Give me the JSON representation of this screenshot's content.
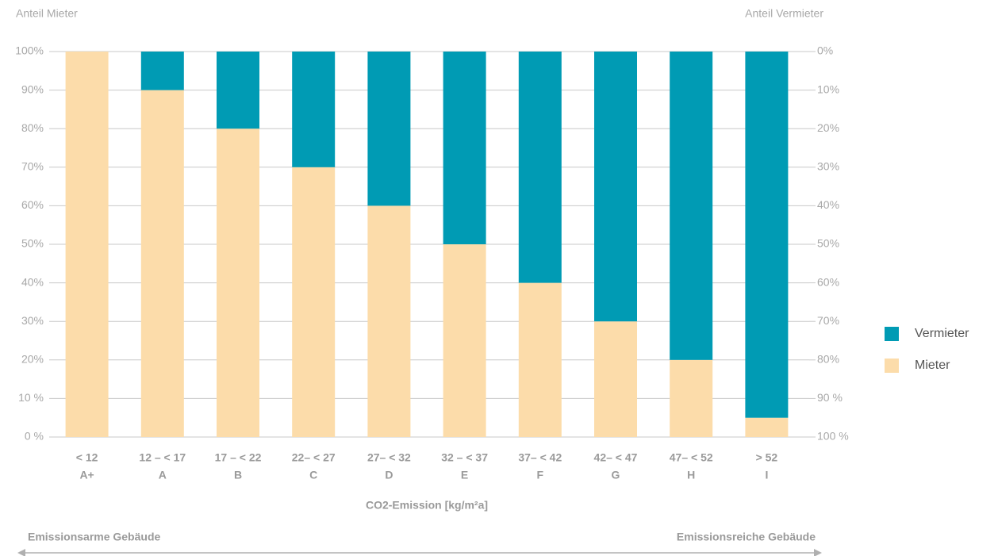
{
  "chart_data": {
    "type": "stacked_bar",
    "y_label": "Anteil Mieter",
    "y2_label": "Anteil Vermieter",
    "x_label": "CO2-Emission [kg/m²a]",
    "annotation_left": "Emissionsarme Gebäude",
    "annotation_right": "Emissionsreiche Gebäude",
    "categories": [
      "< 12",
      "12 – < 17",
      "17 – < 22",
      "22– < 27",
      "27– < 32",
      "32 – < 37",
      "37– < 42",
      "42– < 47",
      "47– < 52",
      "> 52"
    ],
    "category_classes": [
      "A+",
      "A",
      "B",
      "C",
      "D",
      "E",
      "F",
      "G",
      "H",
      "I"
    ],
    "series": [
      {
        "name": "Vermieter",
        "color": "#009bb4",
        "axis": "y2",
        "values": [
          0,
          10,
          20,
          30,
          40,
          50,
          60,
          70,
          80,
          95
        ]
      },
      {
        "name": "Mieter",
        "color": "#fcdcaa",
        "values": [
          100,
          90,
          80,
          70,
          60,
          50,
          40,
          30,
          20,
          5
        ]
      }
    ],
    "ylim": [
      0,
      100
    ],
    "yticks": [
      {
        "value": 0,
        "label": "0 %"
      },
      {
        "value": 10,
        "label": "10 %"
      },
      {
        "value": 20,
        "label": "20%"
      },
      {
        "value": 30,
        "label": "30%"
      },
      {
        "value": 40,
        "label": "40%"
      },
      {
        "value": 50,
        "label": "50%"
      },
      {
        "value": 60,
        "label": "60%"
      },
      {
        "value": 70,
        "label": "70%"
      },
      {
        "value": 80,
        "label": "80%"
      },
      {
        "value": 90,
        "label": "90%"
      },
      {
        "value": 100,
        "label": "100%"
      }
    ],
    "y2lim": [
      100,
      0
    ],
    "y2ticks": [
      {
        "value": 0,
        "label": "0%"
      },
      {
        "value": 10,
        "label": "10%"
      },
      {
        "value": 20,
        "label": "20%"
      },
      {
        "value": 30,
        "label": "30%"
      },
      {
        "value": 40,
        "label": "40%"
      },
      {
        "value": 50,
        "label": "50%"
      },
      {
        "value": 60,
        "label": "60%"
      },
      {
        "value": 70,
        "label": "70%"
      },
      {
        "value": 80,
        "label": "80%"
      },
      {
        "value": 90,
        "label": "90 %"
      },
      {
        "value": 100,
        "label": "100 %"
      }
    ],
    "grid": true,
    "legend": "right"
  }
}
